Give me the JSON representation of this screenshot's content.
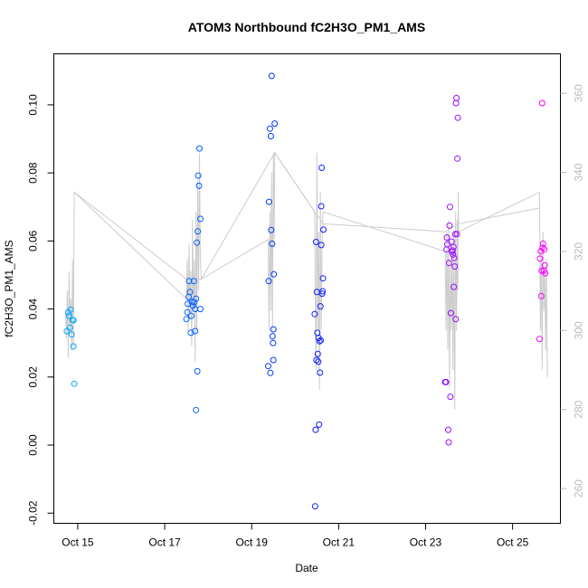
{
  "chart_data": {
    "type": "scatter",
    "title": "ATOM3 Northbound fC2H3O_PM1_AMS",
    "xlabel": "Date",
    "ylabel": "fC2H3O_PM1_AMS",
    "x_ticks": [
      "Oct 15",
      "Oct 17",
      "Oct 19",
      "Oct 21",
      "Oct 23",
      "Oct 25"
    ],
    "x_tick_values": [
      15,
      17,
      19,
      21,
      23,
      25
    ],
    "xlim": [
      14.45,
      26.1
    ],
    "y_ticks": [
      "-0.02",
      "0.00",
      "0.02",
      "0.04",
      "0.06",
      "0.08",
      "0.10"
    ],
    "y_tick_values": [
      -0.02,
      0.0,
      0.02,
      0.04,
      0.06,
      0.08,
      0.1
    ],
    "ylim": [
      -0.023,
      0.115
    ],
    "y2_ticks": [
      "260",
      "280",
      "300",
      "320",
      "340",
      "360"
    ],
    "y2_tick_values": [
      260,
      280,
      300,
      320,
      340,
      360
    ],
    "y2lim": [
      251.2,
      370.0
    ],
    "y2_color": "#bbbbbb",
    "grid": false,
    "point_color_scale": [
      "#00aaff",
      "#0022ff",
      "#ff00ff"
    ],
    "line_color": "#cccccc",
    "points": [
      {
        "x": 14.75,
        "y": 0.0335
      },
      {
        "x": 14.78,
        "y": 0.039
      },
      {
        "x": 14.8,
        "y": 0.038
      },
      {
        "x": 14.82,
        "y": 0.0345
      },
      {
        "x": 14.84,
        "y": 0.0398
      },
      {
        "x": 14.86,
        "y": 0.0325
      },
      {
        "x": 14.88,
        "y": 0.0368
      },
      {
        "x": 14.9,
        "y": 0.0367
      },
      {
        "x": 14.9,
        "y": 0.029
      },
      {
        "x": 14.92,
        "y": 0.018
      },
      {
        "x": 17.5,
        "y": 0.037
      },
      {
        "x": 17.52,
        "y": 0.039
      },
      {
        "x": 17.53,
        "y": 0.0415
      },
      {
        "x": 17.55,
        "y": 0.0435
      },
      {
        "x": 17.56,
        "y": 0.0482
      },
      {
        "x": 17.58,
        "y": 0.045
      },
      {
        "x": 17.6,
        "y": 0.033
      },
      {
        "x": 17.61,
        "y": 0.038
      },
      {
        "x": 17.63,
        "y": 0.042
      },
      {
        "x": 17.65,
        "y": 0.041
      },
      {
        "x": 17.67,
        "y": 0.0482
      },
      {
        "x": 17.68,
        "y": 0.042
      },
      {
        "x": 17.7,
        "y": 0.04
      },
      {
        "x": 17.7,
        "y": 0.0335
      },
      {
        "x": 17.72,
        "y": 0.0103
      },
      {
        "x": 17.72,
        "y": 0.043
      },
      {
        "x": 17.74,
        "y": 0.0595
      },
      {
        "x": 17.75,
        "y": 0.0217
      },
      {
        "x": 17.76,
        "y": 0.0628
      },
      {
        "x": 17.77,
        "y": 0.0792
      },
      {
        "x": 17.79,
        "y": 0.0762
      },
      {
        "x": 17.8,
        "y": 0.0872
      },
      {
        "x": 17.82,
        "y": 0.0665
      },
      {
        "x": 17.82,
        "y": 0.04
      },
      {
        "x": 19.38,
        "y": 0.0232
      },
      {
        "x": 19.39,
        "y": 0.0482
      },
      {
        "x": 19.4,
        "y": 0.0715
      },
      {
        "x": 19.42,
        "y": 0.093
      },
      {
        "x": 19.43,
        "y": 0.0212
      },
      {
        "x": 19.44,
        "y": 0.0908
      },
      {
        "x": 19.45,
        "y": 0.0632
      },
      {
        "x": 19.46,
        "y": 0.1085
      },
      {
        "x": 19.47,
        "y": 0.0592
      },
      {
        "x": 19.48,
        "y": 0.032
      },
      {
        "x": 19.49,
        "y": 0.03
      },
      {
        "x": 19.5,
        "y": 0.034
      },
      {
        "x": 19.5,
        "y": 0.025
      },
      {
        "x": 19.51,
        "y": 0.0502
      },
      {
        "x": 19.53,
        "y": 0.0945
      },
      {
        "x": 20.45,
        "y": 0.0385
      },
      {
        "x": 20.46,
        "y": -0.018
      },
      {
        "x": 20.47,
        "y": 0.0045
      },
      {
        "x": 20.48,
        "y": 0.0597
      },
      {
        "x": 20.49,
        "y": 0.025
      },
      {
        "x": 20.5,
        "y": 0.045
      },
      {
        "x": 20.51,
        "y": 0.033
      },
      {
        "x": 20.52,
        "y": 0.0268
      },
      {
        "x": 20.53,
        "y": 0.0245
      },
      {
        "x": 20.54,
        "y": 0.0315
      },
      {
        "x": 20.55,
        "y": 0.006
      },
      {
        "x": 20.56,
        "y": 0.0305
      },
      {
        "x": 20.57,
        "y": 0.0213
      },
      {
        "x": 20.58,
        "y": 0.0408
      },
      {
        "x": 20.59,
        "y": 0.0308
      },
      {
        "x": 20.6,
        "y": 0.0588
      },
      {
        "x": 20.6,
        "y": 0.0702
      },
      {
        "x": 20.61,
        "y": 0.0815
      },
      {
        "x": 20.62,
        "y": 0.0445
      },
      {
        "x": 20.63,
        "y": 0.0452
      },
      {
        "x": 20.64,
        "y": 0.049
      },
      {
        "x": 20.65,
        "y": 0.0633
      },
      {
        "x": 23.45,
        "y": 0.0185
      },
      {
        "x": 23.47,
        "y": 0.0185
      },
      {
        "x": 23.48,
        "y": 0.0575
      },
      {
        "x": 23.49,
        "y": 0.061
      },
      {
        "x": 23.5,
        "y": 0.059
      },
      {
        "x": 23.52,
        "y": 0.0045
      },
      {
        "x": 23.53,
        "y": 0.0008
      },
      {
        "x": 23.54,
        "y": 0.0535
      },
      {
        "x": 23.55,
        "y": 0.0645
      },
      {
        "x": 23.56,
        "y": 0.07
      },
      {
        "x": 23.57,
        "y": 0.0142
      },
      {
        "x": 23.58,
        "y": 0.0388
      },
      {
        "x": 23.6,
        "y": 0.0598
      },
      {
        "x": 23.61,
        "y": 0.0568
      },
      {
        "x": 23.62,
        "y": 0.0572
      },
      {
        "x": 23.63,
        "y": 0.056
      },
      {
        "x": 23.64,
        "y": 0.0582
      },
      {
        "x": 23.65,
        "y": 0.0465
      },
      {
        "x": 23.66,
        "y": 0.055
      },
      {
        "x": 23.67,
        "y": 0.0525
      },
      {
        "x": 23.68,
        "y": 0.062
      },
      {
        "x": 23.69,
        "y": 0.037
      },
      {
        "x": 23.7,
        "y": 0.1005
      },
      {
        "x": 23.71,
        "y": 0.102
      },
      {
        "x": 23.73,
        "y": 0.0842
      },
      {
        "x": 23.74,
        "y": 0.0962
      },
      {
        "x": 23.72,
        "y": 0.062
      },
      {
        "x": 25.62,
        "y": 0.0312
      },
      {
        "x": 25.63,
        "y": 0.0548
      },
      {
        "x": 25.65,
        "y": 0.057
      },
      {
        "x": 25.66,
        "y": 0.0438
      },
      {
        "x": 25.67,
        "y": 0.0512
      },
      {
        "x": 25.68,
        "y": 0.1005
      },
      {
        "x": 25.69,
        "y": 0.058
      },
      {
        "x": 25.7,
        "y": 0.0592
      },
      {
        "x": 25.72,
        "y": 0.0512
      },
      {
        "x": 25.73,
        "y": 0.0575
      },
      {
        "x": 25.74,
        "y": 0.0528
      },
      {
        "x": 25.75,
        "y": 0.0505
      }
    ],
    "line_series_y2": [
      [
        14.72,
        305
      ],
      [
        14.74,
        298
      ],
      [
        14.76,
        310
      ],
      [
        14.78,
        293
      ],
      [
        14.8,
        315
      ],
      [
        14.82,
        300
      ],
      [
        14.84,
        308
      ],
      [
        14.86,
        295
      ],
      [
        14.88,
        318
      ],
      [
        14.9,
        296
      ],
      [
        14.92,
        335
      ],
      [
        17.5,
        308
      ],
      [
        17.52,
        318
      ],
      [
        17.54,
        300
      ],
      [
        17.56,
        322
      ],
      [
        17.58,
        303
      ],
      [
        17.6,
        315
      ],
      [
        17.62,
        296
      ],
      [
        17.64,
        328
      ],
      [
        17.66,
        305
      ],
      [
        17.68,
        318
      ],
      [
        17.7,
        292
      ],
      [
        17.72,
        330
      ],
      [
        17.74,
        300
      ],
      [
        17.76,
        338
      ],
      [
        17.78,
        310
      ],
      [
        17.8,
        345
      ],
      [
        17.82,
        318
      ],
      [
        17.84,
        313
      ],
      [
        19.38,
        323
      ],
      [
        19.4,
        300
      ],
      [
        19.42,
        330
      ],
      [
        19.44,
        305
      ],
      [
        19.46,
        340
      ],
      [
        19.48,
        300
      ],
      [
        19.5,
        345
      ],
      [
        19.52,
        323
      ],
      [
        19.53,
        345
      ],
      [
        20.45,
        330
      ],
      [
        20.46,
        310
      ],
      [
        20.48,
        290
      ],
      [
        20.5,
        345
      ],
      [
        20.52,
        300
      ],
      [
        20.54,
        325
      ],
      [
        20.56,
        285
      ],
      [
        20.58,
        335
      ],
      [
        20.6,
        300
      ],
      [
        20.62,
        322
      ],
      [
        20.64,
        330
      ],
      [
        23.45,
        320
      ],
      [
        23.47,
        300
      ],
      [
        23.49,
        325
      ],
      [
        23.51,
        295
      ],
      [
        23.53,
        328
      ],
      [
        23.55,
        285
      ],
      [
        23.57,
        318
      ],
      [
        23.59,
        300
      ],
      [
        23.61,
        322
      ],
      [
        23.63,
        290
      ],
      [
        23.65,
        325
      ],
      [
        23.67,
        280
      ],
      [
        23.69,
        330
      ],
      [
        23.71,
        300
      ],
      [
        23.73,
        328
      ],
      [
        23.74,
        310
      ],
      [
        23.75,
        335
      ],
      [
        23.76,
        325
      ],
      [
        25.62,
        335
      ],
      [
        25.64,
        300
      ],
      [
        25.66,
        320
      ],
      [
        25.68,
        290
      ],
      [
        25.7,
        325
      ],
      [
        25.72,
        305
      ],
      [
        25.74,
        315
      ],
      [
        25.76,
        295
      ],
      [
        25.78,
        318
      ],
      [
        25.8,
        288
      ]
    ],
    "connector_y2": [
      [
        14.92,
        335
      ],
      [
        17.5,
        313
      ],
      [
        17.84,
        313
      ],
      [
        19.53,
        345
      ],
      [
        20.45,
        330
      ],
      [
        20.65,
        327
      ],
      [
        23.45,
        325
      ],
      [
        23.76,
        327
      ],
      [
        25.62,
        331
      ]
    ]
  }
}
